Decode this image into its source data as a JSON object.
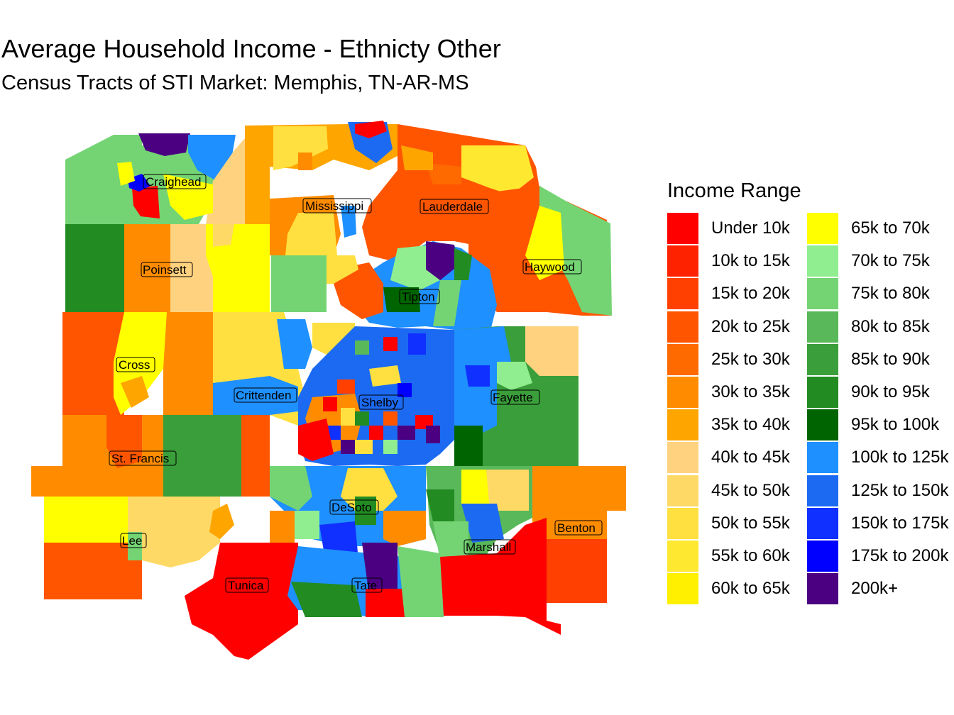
{
  "title": "Average Household Income - Ethnicty Other",
  "subtitle": "Census Tracts of STI Market: Memphis, TN-AR-MS",
  "legend": {
    "title": "Income Range",
    "items": [
      {
        "label": "Under 10k",
        "color": "#FF0000"
      },
      {
        "label": "10k to 15k",
        "color": "#FF2200"
      },
      {
        "label": "15k to 20k",
        "color": "#FF4000"
      },
      {
        "label": "20k to 25k",
        "color": "#FF5500"
      },
      {
        "label": "25k to 30k",
        "color": "#FF6A00"
      },
      {
        "label": "30k to 35k",
        "color": "#FF8C00"
      },
      {
        "label": "35k to 40k",
        "color": "#FFA500"
      },
      {
        "label": "40k to 45k",
        "color": "#FFD27F"
      },
      {
        "label": "45k to 50k",
        "color": "#FFD966"
      },
      {
        "label": "50k to 55k",
        "color": "#FFE040"
      },
      {
        "label": "55k to 60k",
        "color": "#FFE830"
      },
      {
        "label": "60k to 65k",
        "color": "#FFF000"
      },
      {
        "label": "65k to 70k",
        "color": "#FFFF00"
      },
      {
        "label": "70k to 75k",
        "color": "#90EE90"
      },
      {
        "label": "75k to 80k",
        "color": "#74D474"
      },
      {
        "label": "80k to 85k",
        "color": "#59B859"
      },
      {
        "label": "85k to 90k",
        "color": "#3A9E3A"
      },
      {
        "label": "90k to 95k",
        "color": "#228B22"
      },
      {
        "label": "95k to 100k",
        "color": "#006400"
      },
      {
        "label": "100k to 125k",
        "color": "#1E90FF"
      },
      {
        "label": "125k to 150k",
        "color": "#1C6AF2"
      },
      {
        "label": "150k to 175k",
        "color": "#1030FF"
      },
      {
        "label": "175k to 200k",
        "color": "#0000FF"
      },
      {
        "label": "200k+",
        "color": "#4B0082"
      }
    ]
  },
  "counties": [
    "Craighead",
    "Mississippi",
    "Lauderdale",
    "Poinsett",
    "Haywood",
    "Tipton",
    "Cross",
    "Crittenden",
    "Shelby",
    "Fayette",
    "St. Francis",
    "DeSoto",
    "Lee",
    "Benton",
    "Marshall",
    "Tunica",
    "Tate"
  ]
}
